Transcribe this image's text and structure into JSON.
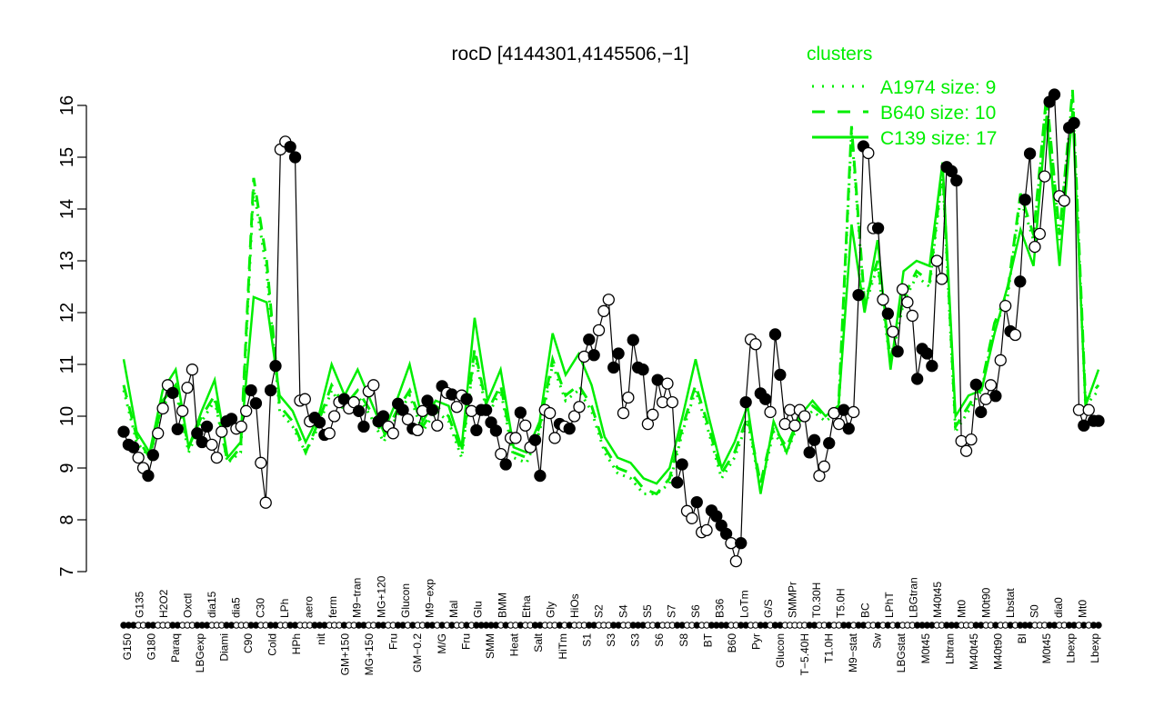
{
  "chart_data": {
    "type": "line",
    "title": "rocD [4144301,4145506,−1]",
    "xlabel": "",
    "ylabel": "",
    "ylim": [
      7,
      16
    ],
    "yticks": [
      7,
      8,
      9,
      10,
      11,
      12,
      13,
      14,
      15,
      16
    ],
    "grid": false,
    "legend": {
      "title": "clusters",
      "placement": "top-right",
      "color": "#00ee00",
      "entries": [
        {
          "label": "A1974 size: 9",
          "style": "dotted"
        },
        {
          "label": "B640 size: 10",
          "style": "dashed"
        },
        {
          "label": "C139 size: 17",
          "style": "solid"
        }
      ]
    },
    "colors": {
      "points": "#000000",
      "clusters": "#00ee00"
    },
    "xtick_labels": [
      "G150",
      "G135",
      "G180",
      "H2O2",
      "Paraq",
      "Oxctl",
      "LBGexp",
      "dia15",
      "Diami",
      "dia5",
      "C90",
      "C30",
      "Cold",
      "LPh",
      "HPh",
      "aero",
      "nit",
      "ferm",
      "GM+150",
      "M9−tran",
      "MG+150",
      "MG+120",
      "Fru",
      "Glucon",
      "GM−0.2",
      "M9−exp",
      "M/G",
      "Mal",
      "Fru",
      "Glu",
      "SMM",
      "BMM",
      "Heat",
      "Etha",
      "Salt",
      "Gly",
      "HiTm",
      "HiOs",
      "S1",
      "S2",
      "S3",
      "S4",
      "S3",
      "S5",
      "S6",
      "S7",
      "S8",
      "S6",
      "BT",
      "B36",
      "B60",
      "LoTm",
      "Pyr",
      "G/S",
      "Glucon",
      "SMMPr",
      "T−5.40H",
      "T0.30H",
      "T1.0H",
      "T5.0H",
      "M9−stat",
      "BC",
      "Sw",
      "LPhT",
      "LBGstat",
      "LBGtran",
      "M0t45",
      "M40t45",
      "Lbtran",
      "Mt0",
      "M40t45",
      "M0t90",
      "M40t90",
      "Lbstat",
      "BI",
      "S0",
      "M0t45",
      "dia0",
      "Lbexp",
      "Mt0",
      "Lbexp"
    ],
    "series": [
      {
        "marker": "circle (filled = 1, open = 0)",
        "points": [
          [
            9.7,
            1
          ],
          [
            9.45,
            1
          ],
          [
            9.4,
            1
          ],
          [
            9.2,
            0
          ],
          [
            9.0,
            0
          ],
          [
            8.85,
            1
          ],
          [
            9.25,
            1
          ],
          [
            9.67,
            0
          ],
          [
            10.15,
            0
          ],
          [
            10.6,
            0
          ],
          [
            10.45,
            1
          ],
          [
            9.75,
            1
          ],
          [
            10.1,
            0
          ],
          [
            10.55,
            0
          ],
          [
            10.9,
            0
          ],
          [
            9.67,
            1
          ],
          [
            9.5,
            1
          ],
          [
            9.8,
            1
          ],
          [
            9.45,
            0
          ],
          [
            9.2,
            0
          ],
          [
            9.7,
            0
          ],
          [
            9.9,
            1
          ],
          [
            9.95,
            1
          ],
          [
            9.76,
            0
          ],
          [
            9.8,
            0
          ],
          [
            10.1,
            0
          ],
          [
            10.5,
            1
          ],
          [
            10.25,
            1
          ],
          [
            9.1,
            0
          ],
          [
            8.33,
            0
          ],
          [
            10.5,
            1
          ],
          [
            10.97,
            1
          ],
          [
            15.15,
            0
          ],
          [
            15.3,
            0
          ],
          [
            15.2,
            1
          ],
          [
            15.0,
            1
          ],
          [
            10.3,
            0
          ],
          [
            10.33,
            0
          ],
          [
            9.9,
            0
          ],
          [
            9.97,
            1
          ],
          [
            9.88,
            1
          ],
          [
            9.64,
            1
          ],
          [
            9.67,
            0
          ],
          [
            10.0,
            0
          ],
          [
            10.27,
            0
          ],
          [
            10.33,
            1
          ],
          [
            10.15,
            0
          ],
          [
            10.27,
            0
          ],
          [
            10.1,
            1
          ],
          [
            9.8,
            1
          ],
          [
            10.48,
            0
          ],
          [
            10.6,
            0
          ],
          [
            9.9,
            1
          ],
          [
            10.0,
            1
          ],
          [
            9.8,
            0
          ],
          [
            9.67,
            0
          ],
          [
            10.24,
            1
          ],
          [
            10.12,
            1
          ],
          [
            9.94,
            0
          ],
          [
            9.76,
            1
          ],
          [
            9.73,
            0
          ],
          [
            10.1,
            0
          ],
          [
            10.3,
            1
          ],
          [
            10.12,
            1
          ],
          [
            9.82,
            0
          ],
          [
            10.58,
            1
          ],
          [
            10.45,
            0
          ],
          [
            10.42,
            1
          ],
          [
            10.18,
            0
          ],
          [
            10.4,
            0
          ],
          [
            10.33,
            1
          ],
          [
            10.1,
            0
          ],
          [
            9.73,
            1
          ],
          [
            10.12,
            1
          ],
          [
            10.12,
            1
          ],
          [
            9.88,
            1
          ],
          [
            9.72,
            1
          ],
          [
            9.27,
            0
          ],
          [
            9.07,
            1
          ],
          [
            9.58,
            0
          ],
          [
            9.58,
            0
          ],
          [
            10.07,
            1
          ],
          [
            9.82,
            0
          ],
          [
            9.4,
            0
          ],
          [
            9.54,
            1
          ],
          [
            8.85,
            1
          ],
          [
            10.12,
            0
          ],
          [
            10.06,
            0
          ],
          [
            9.58,
            0
          ],
          [
            9.85,
            1
          ],
          [
            9.8,
            0
          ],
          [
            9.76,
            1
          ],
          [
            10.0,
            0
          ],
          [
            10.18,
            0
          ],
          [
            11.15,
            0
          ],
          [
            11.48,
            1
          ],
          [
            11.18,
            1
          ],
          [
            11.66,
            0
          ],
          [
            12.03,
            0
          ],
          [
            12.25,
            0
          ],
          [
            10.94,
            1
          ],
          [
            11.21,
            1
          ],
          [
            10.06,
            0
          ],
          [
            10.36,
            0
          ],
          [
            11.47,
            1
          ],
          [
            10.94,
            1
          ],
          [
            10.9,
            1
          ],
          [
            9.85,
            0
          ],
          [
            10.03,
            0
          ],
          [
            10.7,
            1
          ],
          [
            10.27,
            0
          ],
          [
            10.63,
            0
          ],
          [
            10.27,
            0
          ],
          [
            8.72,
            1
          ],
          [
            9.07,
            1
          ],
          [
            8.17,
            0
          ],
          [
            8.03,
            0
          ],
          [
            8.34,
            1
          ],
          [
            7.76,
            0
          ],
          [
            7.8,
            0
          ],
          [
            8.18,
            1
          ],
          [
            8.07,
            1
          ],
          [
            7.89,
            1
          ],
          [
            7.73,
            1
          ],
          [
            7.55,
            0
          ],
          [
            7.2,
            0
          ],
          [
            7.55,
            1
          ],
          [
            10.27,
            1
          ],
          [
            11.48,
            0
          ],
          [
            11.39,
            0
          ],
          [
            10.44,
            1
          ],
          [
            10.33,
            1
          ],
          [
            10.08,
            0
          ],
          [
            11.58,
            1
          ],
          [
            10.8,
            1
          ],
          [
            9.85,
            0
          ],
          [
            10.12,
            0
          ],
          [
            9.82,
            0
          ],
          [
            10.12,
            0
          ],
          [
            10.0,
            0
          ],
          [
            9.3,
            1
          ],
          [
            9.54,
            1
          ],
          [
            8.85,
            0
          ],
          [
            9.03,
            0
          ],
          [
            9.48,
            1
          ],
          [
            10.06,
            0
          ],
          [
            9.85,
            0
          ],
          [
            10.12,
            1
          ],
          [
            9.76,
            1
          ],
          [
            10.08,
            0
          ],
          [
            12.34,
            1
          ],
          [
            15.21,
            1
          ],
          [
            15.08,
            0
          ],
          [
            13.63,
            0
          ],
          [
            13.63,
            1
          ],
          [
            12.25,
            0
          ],
          [
            11.98,
            1
          ],
          [
            11.63,
            0
          ],
          [
            11.25,
            1
          ],
          [
            12.45,
            0
          ],
          [
            12.2,
            0
          ],
          [
            11.94,
            0
          ],
          [
            10.72,
            1
          ],
          [
            11.3,
            1
          ],
          [
            11.21,
            1
          ],
          [
            10.97,
            1
          ],
          [
            13.0,
            0
          ],
          [
            12.65,
            0
          ],
          [
            14.81,
            1
          ],
          [
            14.73,
            1
          ],
          [
            14.55,
            1
          ],
          [
            9.52,
            0
          ],
          [
            9.33,
            0
          ],
          [
            9.55,
            0
          ],
          [
            10.61,
            1
          ],
          [
            10.08,
            1
          ],
          [
            10.33,
            0
          ],
          [
            10.6,
            0
          ],
          [
            10.39,
            1
          ],
          [
            11.08,
            0
          ],
          [
            12.13,
            0
          ],
          [
            11.64,
            1
          ],
          [
            11.57,
            0
          ],
          [
            12.6,
            1
          ],
          [
            14.18,
            1
          ],
          [
            15.07,
            1
          ],
          [
            13.27,
            0
          ],
          [
            13.52,
            0
          ],
          [
            14.63,
            0
          ],
          [
            16.07,
            1
          ],
          [
            16.21,
            1
          ],
          [
            14.25,
            0
          ],
          [
            14.16,
            0
          ],
          [
            15.57,
            1
          ],
          [
            15.66,
            1
          ],
          [
            10.12,
            0
          ],
          [
            9.82,
            1
          ],
          [
            10.12,
            0
          ],
          [
            9.91,
            1
          ],
          [
            9.91,
            1
          ]
        ]
      },
      {
        "name": "C139 size: 17",
        "style": "solid",
        "values": [
          11.1,
          9.7,
          9.3,
          10.5,
          10.9,
          9.4,
          10.1,
          10.7,
          9.2,
          9.5,
          12.3,
          12.2,
          10.4,
          10.1,
          9.5,
          10.0,
          11.0,
          10.4,
          10.9,
          10.3,
          9.7,
          10.3,
          11.0,
          9.9,
          10.3,
          10.2,
          9.4,
          11.9,
          10.3,
          10.9,
          9.4,
          9.3,
          9.9,
          11.6,
          10.8,
          11.2,
          10.6,
          9.6,
          9.2,
          9.1,
          8.8,
          8.7,
          9.0,
          10.0,
          11.1,
          10.0,
          9.0,
          9.5,
          10.2,
          8.5,
          9.9,
          9.3,
          10.0,
          10.3,
          10.0,
          10.2,
          13.7,
          12.0,
          13.4,
          10.9,
          12.8,
          13.0,
          12.9,
          14.9,
          10.0,
          10.4,
          10.5,
          11.6,
          12.5,
          13.6,
          12.9,
          15.8,
          12.9,
          15.9,
          10.2,
          10.9
        ]
      },
      {
        "name": "B640 size: 10",
        "style": "dashed",
        "values": [
          10.6,
          9.6,
          9.2,
          10.3,
          10.6,
          9.4,
          10.0,
          10.4,
          9.1,
          9.4,
          14.6,
          13.0,
          10.2,
          9.9,
          9.3,
          9.9,
          10.6,
          10.2,
          10.5,
          10.1,
          9.6,
          10.1,
          10.5,
          9.8,
          10.2,
          10.0,
          9.3,
          11.3,
          10.1,
          10.6,
          9.3,
          9.2,
          9.8,
          11.1,
          10.4,
          10.6,
          10.2,
          9.4,
          9.0,
          8.9,
          8.6,
          8.5,
          8.8,
          9.8,
          10.6,
          9.8,
          8.9,
          9.3,
          10.0,
          8.7,
          9.8,
          9.4,
          10.0,
          10.2,
          10.0,
          10.2,
          15.6,
          12.2,
          13.0,
          11.1,
          12.3,
          12.8,
          12.6,
          14.8,
          9.8,
          10.2,
          10.6,
          11.8,
          12.4,
          14.3,
          13.5,
          16.2,
          13.5,
          16.3,
          10.3,
          10.6
        ]
      },
      {
        "name": "A1974 size: 9",
        "style": "dotted",
        "values": [
          10.5,
          9.5,
          9.2,
          10.2,
          10.5,
          9.3,
          9.9,
          10.3,
          9.1,
          9.3,
          14.4,
          12.8,
          10.1,
          9.8,
          9.3,
          9.8,
          10.5,
          10.1,
          10.4,
          10.0,
          9.5,
          10.0,
          10.4,
          9.7,
          10.1,
          9.9,
          9.2,
          11.2,
          10.0,
          10.5,
          9.2,
          9.1,
          9.7,
          11.0,
          10.3,
          10.5,
          10.1,
          9.3,
          8.9,
          8.8,
          8.5,
          8.5,
          8.7,
          9.7,
          10.5,
          9.7,
          8.8,
          9.2,
          9.9,
          8.6,
          9.7,
          9.3,
          9.9,
          10.1,
          9.9,
          10.1,
          15.5,
          12.1,
          12.9,
          11.0,
          12.2,
          12.7,
          12.5,
          14.7,
          9.7,
          10.1,
          10.5,
          11.7,
          12.3,
          14.2,
          13.4,
          16.1,
          13.4,
          16.2,
          10.2,
          10.5
        ]
      }
    ]
  }
}
